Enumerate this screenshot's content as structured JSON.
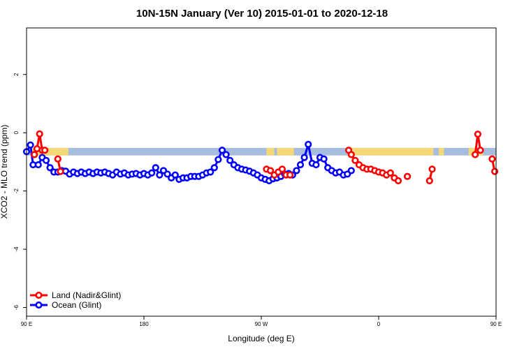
{
  "chart_data": {
    "type": "line",
    "title": "10N-15N January (Ver 10)   2015-01-01 to 2020-12-18",
    "xlabel": "Longitude (deg E)",
    "ylabel": "XCO2 - MLO trend (ppm)",
    "xlim": [
      90,
      450
    ],
    "ylim": [
      -6.3,
      3.6
    ],
    "x_ticks": [
      {
        "value": 90,
        "label": "90 E"
      },
      {
        "value": 180,
        "label": "180"
      },
      {
        "value": 270,
        "label": "90 W"
      },
      {
        "value": 360,
        "label": "0"
      },
      {
        "value": 450,
        "label": "90 E"
      },
      {
        "value": 540,
        "label": "180"
      }
    ],
    "y_ticks": [
      {
        "value": 2,
        "label": "2"
      },
      {
        "value": 0,
        "label": "0"
      },
      {
        "value": -2,
        "label": "-2"
      },
      {
        "value": -4,
        "label": "-4"
      },
      {
        "value": -6,
        "label": "-6"
      }
    ],
    "grid": false,
    "legend_position": "bottom-left",
    "band": {
      "ymin": -0.78,
      "ymax": -0.52,
      "color": "#a7bde0"
    },
    "land_mask": {
      "color": "#f5d978",
      "ymin": -0.78,
      "ymax": -0.52,
      "ranges": [
        [
          94,
          122
        ],
        [
          274,
          280
        ],
        [
          282,
          295
        ],
        [
          337,
          402
        ],
        [
          406,
          410
        ],
        [
          429,
          440
        ],
        [
          464,
          492
        ],
        [
          509,
          520
        ]
      ]
    },
    "series": [
      {
        "name": "Land (Nadir&Glint)",
        "color": "#ff0000",
        "segments": [
          [
            [
              96,
              -0.75
            ],
            [
              98,
              -0.55
            ],
            [
              100,
              -0.04
            ],
            [
              102,
              -0.6
            ],
            [
              104,
              -0.6
            ]
          ],
          [
            [
              114,
              -0.9
            ],
            [
              116,
              -1.33
            ]
          ],
          [
            [
              274,
              -1.25
            ],
            [
              277,
              -1.3
            ],
            [
              280,
              -1.45
            ],
            [
              283,
              -1.35
            ],
            [
              286,
              -1.25
            ],
            [
              289,
              -1.45
            ],
            [
              292,
              -1.45
            ]
          ],
          [
            [
              337,
              -0.6
            ],
            [
              339,
              -0.75
            ],
            [
              342,
              -0.95
            ],
            [
              345,
              -1.1
            ],
            [
              348,
              -1.2
            ],
            [
              351,
              -1.25
            ],
            [
              354,
              -1.25
            ],
            [
              357,
              -1.3
            ],
            [
              360,
              -1.35
            ],
            [
              363,
              -1.38
            ],
            [
              366,
              -1.45
            ],
            [
              369,
              -1.38
            ],
            [
              372,
              -1.55
            ],
            [
              375,
              -1.65
            ]
          ],
          [
            [
              382,
              -1.5
            ]
          ],
          [
            [
              399,
              -1.65
            ],
            [
              401,
              -1.25
            ]
          ],
          [
            [
              434,
              -0.75
            ],
            [
              436,
              -0.05
            ],
            [
              438,
              -0.6
            ]
          ],
          [
            [
              447,
              -0.9
            ],
            [
              449,
              -1.33
            ]
          ]
        ]
      },
      {
        "name": "Ocean (Glint)",
        "color": "#0000ff",
        "points": [
          [
            90,
            -0.65
          ],
          [
            93,
            -0.42
          ],
          [
            95,
            -1.1
          ],
          [
            99,
            -1.1
          ],
          [
            102,
            -0.85
          ],
          [
            105,
            -0.95
          ],
          [
            108,
            -1.2
          ],
          [
            111,
            -1.35
          ],
          [
            114,
            -1.35
          ],
          [
            117,
            -1.3
          ],
          [
            120,
            -1.32
          ],
          [
            123,
            -1.42
          ],
          [
            126,
            -1.35
          ],
          [
            129,
            -1.4
          ],
          [
            132,
            -1.35
          ],
          [
            135,
            -1.4
          ],
          [
            138,
            -1.35
          ],
          [
            141,
            -1.4
          ],
          [
            144,
            -1.35
          ],
          [
            147,
            -1.38
          ],
          [
            150,
            -1.35
          ],
          [
            153,
            -1.4
          ],
          [
            156,
            -1.45
          ],
          [
            159,
            -1.35
          ],
          [
            162,
            -1.42
          ],
          [
            165,
            -1.38
          ],
          [
            168,
            -1.45
          ],
          [
            171,
            -1.42
          ],
          [
            174,
            -1.4
          ],
          [
            177,
            -1.45
          ],
          [
            180,
            -1.4
          ],
          [
            183,
            -1.45
          ],
          [
            186,
            -1.38
          ],
          [
            189,
            -1.2
          ],
          [
            192,
            -1.45
          ],
          [
            195,
            -1.3
          ],
          [
            198,
            -1.42
          ],
          [
            201,
            -1.55
          ],
          [
            204,
            -1.45
          ],
          [
            207,
            -1.6
          ],
          [
            210,
            -1.55
          ],
          [
            213,
            -1.55
          ],
          [
            216,
            -1.5
          ],
          [
            219,
            -1.5
          ],
          [
            222,
            -1.5
          ],
          [
            225,
            -1.45
          ],
          [
            228,
            -1.38
          ],
          [
            231,
            -1.35
          ],
          [
            234,
            -1.2
          ],
          [
            237,
            -0.92
          ],
          [
            240,
            -0.6
          ],
          [
            243,
            -0.75
          ],
          [
            246,
            -0.95
          ],
          [
            249,
            -1.1
          ],
          [
            252,
            -1.2
          ],
          [
            255,
            -1.25
          ],
          [
            258,
            -1.28
          ],
          [
            261,
            -1.32
          ],
          [
            264,
            -1.38
          ],
          [
            267,
            -1.45
          ],
          [
            270,
            -1.55
          ],
          [
            273,
            -1.6
          ],
          [
            276,
            -1.65
          ],
          [
            279,
            -1.58
          ],
          [
            282,
            -1.55
          ],
          [
            285,
            -1.5
          ],
          [
            288,
            -1.42
          ],
          [
            291,
            -1.4
          ],
          [
            294,
            -1.45
          ],
          [
            297,
            -1.3
          ],
          [
            300,
            -1.1
          ],
          [
            303,
            -0.85
          ],
          [
            306,
            -0.4
          ],
          [
            309,
            -1.05
          ],
          [
            312,
            -1.1
          ],
          [
            315,
            -0.85
          ],
          [
            318,
            -0.9
          ],
          [
            321,
            -1.2
          ],
          [
            324,
            -1.3
          ],
          [
            327,
            -1.38
          ],
          [
            330,
            -1.35
          ],
          [
            333,
            -1.45
          ],
          [
            336,
            -1.42
          ],
          [
            339,
            -1.3
          ]
        ]
      }
    ]
  }
}
